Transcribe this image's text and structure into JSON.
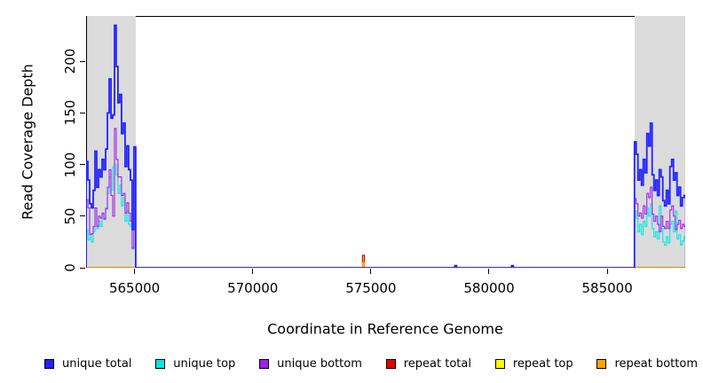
{
  "chart_data": {
    "type": "line",
    "style": "step",
    "title": "",
    "xlabel": "Coordinate in Reference Genome",
    "ylabel": "Read Coverage Depth",
    "xlim": [
      562950,
      588300
    ],
    "ylim": [
      0,
      244
    ],
    "x_ticks": [
      565000,
      570000,
      575000,
      580000,
      585000
    ],
    "y_ticks": [
      0,
      50,
      100,
      150,
      200
    ],
    "grid": false,
    "frame_color": "#000000",
    "highlight_bands": {
      "color": "#DBDBDB",
      "regions": [
        [
          562950,
          565050
        ],
        [
          586160,
          588300
        ]
      ]
    },
    "baseline_value": 0,
    "series": [
      {
        "name": "repeat top",
        "color": "#FFFF00",
        "line_width": 1.2,
        "segments": [
          {
            "start": 574650,
            "bin_size": 75,
            "values": [
              7
            ]
          }
        ]
      },
      {
        "name": "repeat total",
        "color": "#E60000",
        "line_width": 1.3,
        "segments": [
          {
            "start": 574650,
            "bin_size": 75,
            "values": [
              12
            ]
          }
        ]
      },
      {
        "name": "repeat bottom",
        "color": "#FFA500",
        "line_width": 1.4,
        "segments": [
          {
            "start": 574650,
            "bin_size": 75,
            "values": [
              5
            ]
          }
        ]
      },
      {
        "name": "unique top",
        "color": "#00E8E8",
        "line_width": 1.1,
        "segments": [
          {
            "start": 562950,
            "bin_size": 75,
            "values": [
              37,
              27,
              30,
              25,
              35,
              55,
              38,
              45,
              40,
              52,
              48,
              58,
              72,
              88,
              75,
              98,
              100,
              90,
              72,
              80,
              60,
              68,
              45,
              55,
              42,
              40,
              18,
              60
            ]
          },
          {
            "start": 586150,
            "bin_size": 75,
            "values": [
              55,
              48,
              35,
              42,
              32,
              45,
              40,
              58,
              50,
              62,
              38,
              30,
              35,
              28,
              60,
              38,
              25,
              22,
              30,
              24,
              42,
              45,
              35,
              55,
              28,
              32,
              22,
              26,
              30
            ]
          }
        ]
      },
      {
        "name": "unique bottom",
        "color": "#A020F0",
        "line_width": 1.1,
        "segments": [
          {
            "start": 562950,
            "bin_size": 75,
            "values": [
              66,
              58,
              32,
              33,
              40,
              58,
              40,
              50,
              48,
              53,
              47,
              57,
              78,
              95,
              70,
              50,
              135,
              105,
              88,
              88,
              70,
              72,
              53,
              63,
              53,
              45,
              19,
              57
            ]
          },
          {
            "start": 586150,
            "bin_size": 75,
            "values": [
              67,
              62,
              50,
              53,
              48,
              60,
              52,
              72,
              68,
              78,
              52,
              45,
              50,
              42,
              35,
              50,
              40,
              38,
              45,
              38,
              56,
              60,
              50,
              37,
              42,
              46,
              38,
              42,
              40
            ]
          }
        ]
      },
      {
        "name": "unique total",
        "color": "#2222FF",
        "line_width": 1.8,
        "segments": [
          {
            "start": 562950,
            "bin_size": 75,
            "values": [
              103,
              85,
              62,
              58,
              75,
              113,
              78,
              95,
              88,
              105,
              95,
              115,
              150,
              183,
              145,
              148,
              235,
              195,
              160,
              168,
              130,
              140,
              98,
              118,
              95,
              85,
              37,
              117
            ]
          },
          {
            "start": 578550,
            "bin_size": 75,
            "values": [
              2
            ]
          },
          {
            "start": 580950,
            "bin_size": 75,
            "values": [
              2
            ]
          },
          {
            "start": 586150,
            "bin_size": 75,
            "values": [
              122,
              110,
              85,
              95,
              80,
              105,
              92,
              130,
              118,
              140,
              90,
              75,
              85,
              70,
              95,
              88,
              65,
              60,
              75,
              62,
              98,
              105,
              85,
              92,
              70,
              78,
              60,
              68,
              70
            ]
          }
        ]
      }
    ],
    "legend": {
      "position": "bottom",
      "items": [
        {
          "label": "unique total",
          "color": "#2222FF"
        },
        {
          "label": "unique top",
          "color": "#00E8E8"
        },
        {
          "label": "unique bottom",
          "color": "#A020F0"
        },
        {
          "label": "repeat total",
          "color": "#E60000"
        },
        {
          "label": "repeat top",
          "color": "#FFFF00"
        },
        {
          "label": "repeat bottom",
          "color": "#FFA500"
        }
      ]
    }
  }
}
